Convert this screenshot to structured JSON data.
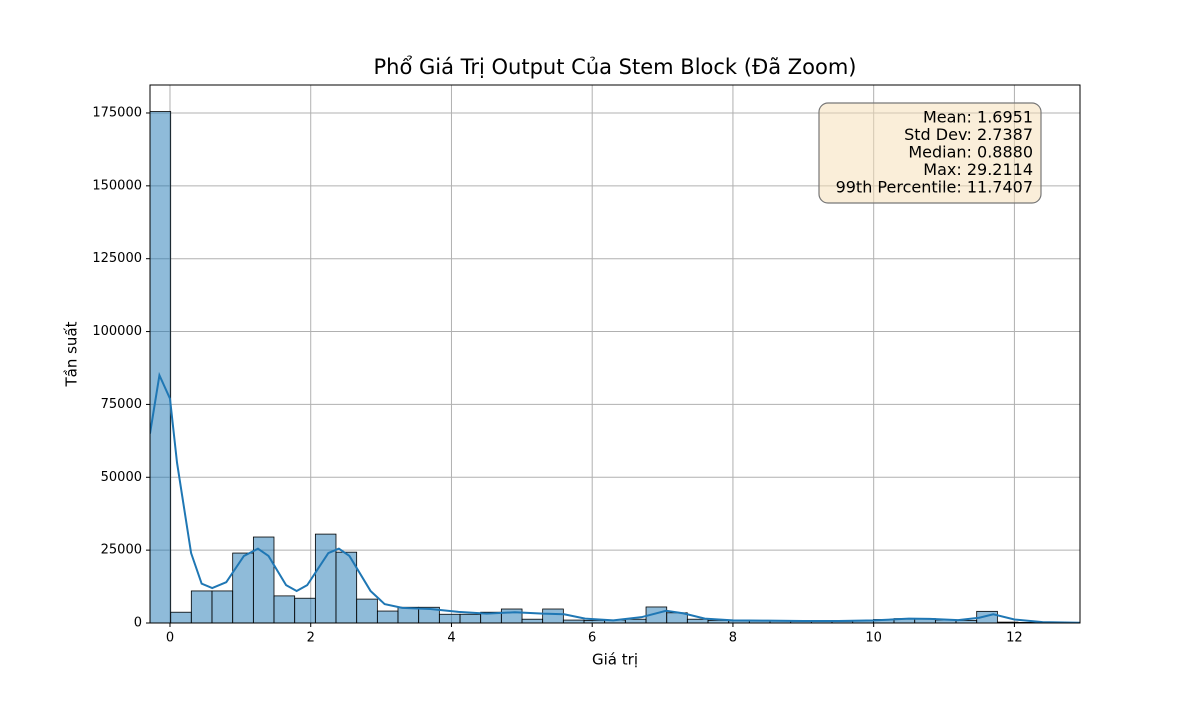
{
  "chart_data": {
    "type": "histogram",
    "title": "Phổ Giá Trị Output Của Stem Block (Đã Zoom)",
    "x_label": "Giá trị",
    "y_label": "Tần suất",
    "color": "#1f77b4",
    "bins": [
      -0.284,
      0.01,
      0.303,
      0.597,
      0.891,
      1.185,
      1.478,
      1.772,
      2.066,
      2.359,
      2.653,
      2.947,
      3.24,
      3.534,
      3.828,
      4.122,
      4.415,
      4.709,
      5.003,
      5.296,
      5.59,
      5.884,
      6.177,
      6.471,
      6.765,
      7.059,
      7.352,
      7.646,
      7.94,
      8.233,
      8.527,
      8.821,
      9.114,
      9.408,
      9.702,
      9.996,
      10.289,
      10.583,
      10.877,
      11.17,
      11.464,
      11.758,
      12.051,
      12.345,
      12.639,
      12.932
    ],
    "values": [
      175500,
      3700,
      11000,
      11000,
      24000,
      29500,
      9300,
      8500,
      30500,
      24300,
      8200,
      4100,
      5400,
      5400,
      3000,
      3000,
      3700,
      4800,
      1300,
      4800,
      1000,
      900,
      1000,
      1300,
      5500,
      3500,
      1300,
      900,
      800,
      800,
      700,
      600,
      600,
      600,
      800,
      1200,
      1500,
      1500,
      1000,
      900,
      4000,
      300,
      200,
      100,
      100
    ],
    "kde": {
      "color": "#1f77b4",
      "x": [
        -0.284,
        -0.15,
        0,
        0.1,
        0.3,
        0.45,
        0.6,
        0.8,
        1.05,
        1.25,
        1.4,
        1.65,
        1.8,
        1.95,
        2.25,
        2.4,
        2.55,
        2.85,
        3.05,
        3.3,
        3.7,
        4.1,
        4.5,
        4.9,
        5.3,
        5.6,
        5.9,
        6.3,
        6.7,
        7.05,
        7.3,
        7.6,
        8,
        8.5,
        9,
        9.5,
        10,
        10.5,
        10.8,
        11.2,
        11.5,
        11.7,
        12,
        12.4,
        12.932
      ],
      "values": [
        65000,
        85000,
        77000,
        55000,
        24000,
        13500,
        12000,
        14000,
        23000,
        25500,
        23000,
        13000,
        11000,
        13000,
        24000,
        25500,
        23000,
        11000,
        6500,
        5200,
        4800,
        3800,
        3200,
        3700,
        3200,
        3000,
        1500,
        900,
        2000,
        4200,
        3300,
        1500,
        900,
        800,
        700,
        700,
        900,
        1500,
        1400,
        1000,
        1800,
        3000,
        1200,
        300,
        100
      ]
    },
    "xlim": [
      -0.284,
      12.932
    ],
    "ylim": [
      0,
      184600
    ],
    "xticks": [
      0,
      2,
      4,
      6,
      8,
      10,
      12
    ],
    "yticks": [
      0,
      25000,
      50000,
      75000,
      100000,
      125000,
      150000,
      175000
    ],
    "grid": true,
    "annotation": [
      "Mean: 1.6951",
      "Std Dev: 2.7387",
      "Median: 0.8880",
      "Max: 29.2114",
      "99th Percentile: 11.7407"
    ]
  }
}
